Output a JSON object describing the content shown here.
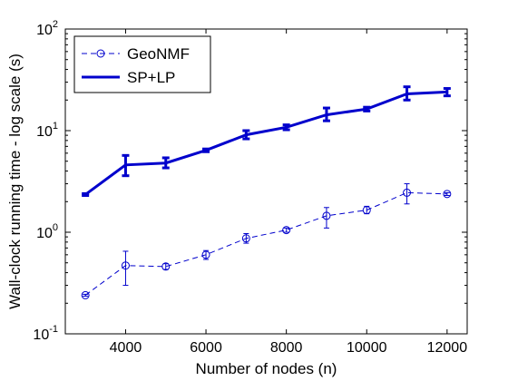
{
  "chart_data": {
    "type": "line",
    "xlabel": "Number of nodes (n)",
    "ylabel": "Wall-clock running time - log scale (s)",
    "xlim": [
      2500,
      12500
    ],
    "ylim": [
      0.1,
      100
    ],
    "yscale": "log",
    "x_ticks": [
      4000,
      6000,
      8000,
      10000,
      12000
    ],
    "x_tick_labels": [
      "4000",
      "6000",
      "8000",
      "10000",
      "12000"
    ],
    "y_ticks": [
      0.1,
      1,
      10,
      100
    ],
    "y_tick_labels": [
      {
        "base": "10",
        "exp": "-1"
      },
      {
        "base": "10",
        "exp": "0"
      },
      {
        "base": "10",
        "exp": "1"
      },
      {
        "base": "10",
        "exp": "2"
      }
    ],
    "legend_position": "top-left",
    "grid": false,
    "x": [
      3000,
      4000,
      5000,
      6000,
      7000,
      8000,
      9000,
      10000,
      11000,
      12000
    ],
    "series": [
      {
        "name": "GeoNMF",
        "color": "#0000cc",
        "line_style": "dashed",
        "marker": "circle",
        "values": [
          0.24,
          0.47,
          0.46,
          0.6,
          0.87,
          1.05,
          1.45,
          1.65,
          2.45,
          2.38
        ],
        "err_low": [
          0.235,
          0.3,
          0.43,
          0.54,
          0.78,
          1.0,
          1.1,
          1.52,
          1.9,
          2.3
        ],
        "err_high": [
          0.245,
          0.65,
          0.49,
          0.66,
          0.97,
          1.1,
          1.75,
          1.8,
          3.0,
          2.45
        ]
      },
      {
        "name": "SP+LP",
        "color": "#0000cc",
        "line_style": "solid",
        "marker": "none",
        "values": [
          2.35,
          4.6,
          4.8,
          6.4,
          9.1,
          10.8,
          14.3,
          16.3,
          23.0,
          24.0
        ],
        "err_low": [
          2.3,
          3.6,
          4.3,
          6.2,
          8.3,
          10.2,
          12.5,
          15.6,
          20.0,
          22.0
        ],
        "err_high": [
          2.4,
          5.7,
          5.4,
          6.6,
          10.0,
          11.4,
          16.7,
          17.0,
          27.0,
          26.0
        ]
      }
    ]
  }
}
